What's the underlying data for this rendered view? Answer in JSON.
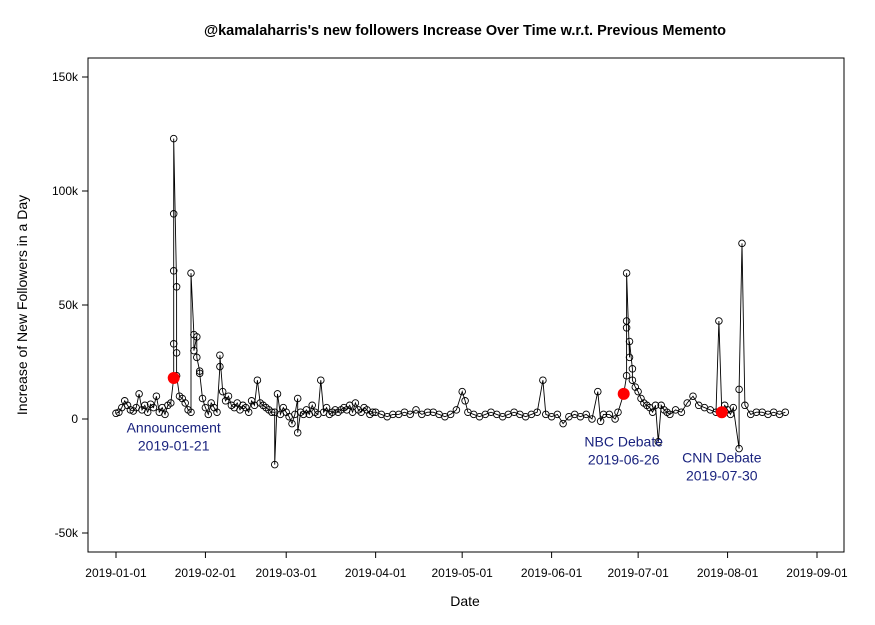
{
  "chart_data": {
    "type": "scatter",
    "title": "@kamalaharris's new followers Increase Over Time w.r.t. Previous Memento",
    "xlabel": "Date",
    "ylabel": "Increase of New Followers in a Day",
    "xlim": [
      "2019-01-01",
      "2019-09-01"
    ],
    "ylim": [
      -50000,
      150000
    ],
    "x_ticks": [
      "2019-01-01",
      "2019-02-01",
      "2019-03-01",
      "2019-04-01",
      "2019-05-01",
      "2019-06-01",
      "2019-07-01",
      "2019-08-01",
      "2019-09-01"
    ],
    "y_ticks": [
      {
        "value": -50000,
        "label": "-50k"
      },
      {
        "value": 0,
        "label": "0"
      },
      {
        "value": 50000,
        "label": "50k"
      },
      {
        "value": 100000,
        "label": "100k"
      },
      {
        "value": 150000,
        "label": "150k"
      }
    ],
    "grid": false,
    "marker_style": "open-circle-with-line",
    "colors": {
      "series": "#000000",
      "highlight": "#ff0000",
      "annotation": "#1a237e"
    },
    "series": [
      {
        "points": [
          [
            "2019-01-01",
            2500
          ],
          [
            "2019-01-02",
            3000
          ],
          [
            "2019-01-03",
            5000
          ],
          [
            "2019-01-04",
            8000
          ],
          [
            "2019-01-05",
            6000
          ],
          [
            "2019-01-06",
            4000
          ],
          [
            "2019-01-07",
            3500
          ],
          [
            "2019-01-08",
            5000
          ],
          [
            "2019-01-09",
            11000
          ],
          [
            "2019-01-10",
            4000
          ],
          [
            "2019-01-11",
            6000
          ],
          [
            "2019-01-12",
            3000
          ],
          [
            "2019-01-13",
            6500
          ],
          [
            "2019-01-14",
            5000
          ],
          [
            "2019-01-15",
            10000
          ],
          [
            "2019-01-16",
            3000
          ],
          [
            "2019-01-17",
            5000
          ],
          [
            "2019-01-18",
            2000
          ],
          [
            "2019-01-19",
            6000
          ],
          [
            "2019-01-20",
            7000
          ],
          [
            "2019-01-21",
            18000
          ],
          [
            "2019-01-21",
            33000
          ],
          [
            "2019-01-21",
            65000
          ],
          [
            "2019-01-21",
            90000
          ],
          [
            "2019-01-21",
            123000
          ],
          [
            "2019-01-22",
            58000
          ],
          [
            "2019-01-22",
            29000
          ],
          [
            "2019-01-22",
            19000
          ],
          [
            "2019-01-23",
            10000
          ],
          [
            "2019-01-24",
            9000
          ],
          [
            "2019-01-25",
            7000
          ],
          [
            "2019-01-26",
            4000
          ],
          [
            "2019-01-27",
            3000
          ],
          [
            "2019-01-27",
            64000
          ],
          [
            "2019-01-28",
            37000
          ],
          [
            "2019-01-28",
            30000
          ],
          [
            "2019-01-29",
            36000
          ],
          [
            "2019-01-29",
            27000
          ],
          [
            "2019-01-30",
            21000
          ],
          [
            "2019-01-30",
            20000
          ],
          [
            "2019-01-31",
            9000
          ],
          [
            "2019-02-01",
            5000
          ],
          [
            "2019-02-02",
            2000
          ],
          [
            "2019-02-03",
            7000
          ],
          [
            "2019-02-04",
            5000
          ],
          [
            "2019-02-05",
            3000
          ],
          [
            "2019-02-06",
            23000
          ],
          [
            "2019-02-06",
            28000
          ],
          [
            "2019-02-07",
            12000
          ],
          [
            "2019-02-08",
            8000
          ],
          [
            "2019-02-09",
            10000
          ],
          [
            "2019-02-10",
            6000
          ],
          [
            "2019-02-11",
            5000
          ],
          [
            "2019-02-12",
            7000
          ],
          [
            "2019-02-13",
            4000
          ],
          [
            "2019-02-14",
            6000
          ],
          [
            "2019-02-15",
            5000
          ],
          [
            "2019-02-16",
            3000
          ],
          [
            "2019-02-17",
            8000
          ],
          [
            "2019-02-18",
            6000
          ],
          [
            "2019-02-19",
            17000
          ],
          [
            "2019-02-20",
            7000
          ],
          [
            "2019-02-21",
            6000
          ],
          [
            "2019-02-22",
            5000
          ],
          [
            "2019-02-23",
            4000
          ],
          [
            "2019-02-24",
            3000
          ],
          [
            "2019-02-25",
            3000
          ],
          [
            "2019-02-25",
            -20000
          ],
          [
            "2019-02-26",
            11000
          ],
          [
            "2019-02-27",
            2000
          ],
          [
            "2019-02-28",
            5000
          ],
          [
            "2019-03-01",
            3000
          ],
          [
            "2019-03-02",
            1000
          ],
          [
            "2019-03-03",
            -2000
          ],
          [
            "2019-03-04",
            2000
          ],
          [
            "2019-03-05",
            9000
          ],
          [
            "2019-03-05",
            -6000
          ],
          [
            "2019-03-06",
            3000
          ],
          [
            "2019-03-07",
            2000
          ],
          [
            "2019-03-08",
            4000
          ],
          [
            "2019-03-09",
            2000
          ],
          [
            "2019-03-10",
            6000
          ],
          [
            "2019-03-11",
            3000
          ],
          [
            "2019-03-12",
            2000
          ],
          [
            "2019-03-13",
            17000
          ],
          [
            "2019-03-14",
            3000
          ],
          [
            "2019-03-15",
            5000
          ],
          [
            "2019-03-16",
            2000
          ],
          [
            "2019-03-17",
            3000
          ],
          [
            "2019-03-18",
            4000
          ],
          [
            "2019-03-19",
            3000
          ],
          [
            "2019-03-20",
            4000
          ],
          [
            "2019-03-21",
            5000
          ],
          [
            "2019-03-22",
            4000
          ],
          [
            "2019-03-23",
            6000
          ],
          [
            "2019-03-24",
            3000
          ],
          [
            "2019-03-25",
            7000
          ],
          [
            "2019-03-26",
            4000
          ],
          [
            "2019-03-27",
            3000
          ],
          [
            "2019-03-28",
            5000
          ],
          [
            "2019-03-29",
            4000
          ],
          [
            "2019-03-30",
            2000
          ],
          [
            "2019-03-31",
            3000
          ],
          [
            "2019-04-01",
            3000
          ],
          [
            "2019-04-03",
            2000
          ],
          [
            "2019-04-05",
            1000
          ],
          [
            "2019-04-07",
            2000
          ],
          [
            "2019-04-09",
            2000
          ],
          [
            "2019-04-11",
            3000
          ],
          [
            "2019-04-13",
            2000
          ],
          [
            "2019-04-15",
            4000
          ],
          [
            "2019-04-17",
            2000
          ],
          [
            "2019-04-19",
            3000
          ],
          [
            "2019-04-21",
            3000
          ],
          [
            "2019-04-23",
            2000
          ],
          [
            "2019-04-25",
            1000
          ],
          [
            "2019-04-27",
            2000
          ],
          [
            "2019-04-29",
            4000
          ],
          [
            "2019-05-01",
            12000
          ],
          [
            "2019-05-02",
            8000
          ],
          [
            "2019-05-03",
            3000
          ],
          [
            "2019-05-05",
            2000
          ],
          [
            "2019-05-07",
            1000
          ],
          [
            "2019-05-09",
            2000
          ],
          [
            "2019-05-11",
            3000
          ],
          [
            "2019-05-13",
            2000
          ],
          [
            "2019-05-15",
            1000
          ],
          [
            "2019-05-17",
            2000
          ],
          [
            "2019-05-19",
            3000
          ],
          [
            "2019-05-21",
            2000
          ],
          [
            "2019-05-23",
            1000
          ],
          [
            "2019-05-25",
            2000
          ],
          [
            "2019-05-27",
            3000
          ],
          [
            "2019-05-29",
            17000
          ],
          [
            "2019-05-30",
            2000
          ],
          [
            "2019-06-01",
            1000
          ],
          [
            "2019-06-03",
            2000
          ],
          [
            "2019-06-05",
            -2000
          ],
          [
            "2019-06-07",
            1000
          ],
          [
            "2019-06-09",
            2000
          ],
          [
            "2019-06-11",
            1000
          ],
          [
            "2019-06-13",
            2000
          ],
          [
            "2019-06-15",
            0
          ],
          [
            "2019-06-17",
            12000
          ],
          [
            "2019-06-18",
            -1000
          ],
          [
            "2019-06-19",
            2000
          ],
          [
            "2019-06-21",
            2000
          ],
          [
            "2019-06-23",
            0
          ],
          [
            "2019-06-24",
            3000
          ],
          [
            "2019-06-26",
            11000
          ],
          [
            "2019-06-27",
            19000
          ],
          [
            "2019-06-27",
            40000
          ],
          [
            "2019-06-27",
            43000
          ],
          [
            "2019-06-27",
            64000
          ],
          [
            "2019-06-28",
            27000
          ],
          [
            "2019-06-28",
            34000
          ],
          [
            "2019-06-29",
            22000
          ],
          [
            "2019-06-29",
            17000
          ],
          [
            "2019-06-30",
            14000
          ],
          [
            "2019-07-01",
            12000
          ],
          [
            "2019-07-02",
            9000
          ],
          [
            "2019-07-03",
            7000
          ],
          [
            "2019-07-04",
            6000
          ],
          [
            "2019-07-05",
            5000
          ],
          [
            "2019-07-06",
            3000
          ],
          [
            "2019-07-07",
            6000
          ],
          [
            "2019-07-08",
            -10000
          ],
          [
            "2019-07-09",
            6000
          ],
          [
            "2019-07-10",
            4000
          ],
          [
            "2019-07-11",
            3000
          ],
          [
            "2019-07-12",
            2000
          ],
          [
            "2019-07-14",
            4000
          ],
          [
            "2019-07-16",
            3000
          ],
          [
            "2019-07-18",
            7000
          ],
          [
            "2019-07-20",
            10000
          ],
          [
            "2019-07-22",
            6000
          ],
          [
            "2019-07-24",
            5000
          ],
          [
            "2019-07-26",
            4000
          ],
          [
            "2019-07-28",
            3000
          ],
          [
            "2019-07-29",
            43000
          ],
          [
            "2019-07-30",
            3000
          ],
          [
            "2019-07-31",
            6000
          ],
          [
            "2019-08-01",
            4000
          ],
          [
            "2019-08-02",
            2000
          ],
          [
            "2019-08-03",
            5000
          ],
          [
            "2019-08-05",
            -13000
          ],
          [
            "2019-08-05",
            13000
          ],
          [
            "2019-08-06",
            77000
          ],
          [
            "2019-08-07",
            6000
          ],
          [
            "2019-08-09",
            2000
          ],
          [
            "2019-08-11",
            3000
          ],
          [
            "2019-08-13",
            3000
          ],
          [
            "2019-08-15",
            2000
          ],
          [
            "2019-08-17",
            3000
          ],
          [
            "2019-08-19",
            2000
          ],
          [
            "2019-08-21",
            3000
          ]
        ]
      }
    ],
    "highlighted_points": [
      [
        "2019-01-21",
        18000
      ],
      [
        "2019-06-26",
        11000
      ],
      [
        "2019-07-30",
        3000
      ]
    ],
    "annotations": [
      {
        "lines": [
          "Announcement",
          "2019-01-21"
        ],
        "at": [
          "2019-01-21",
          -6000
        ]
      },
      {
        "lines": [
          "NBC Debate",
          "2019-06-26"
        ],
        "at": [
          "2019-06-26",
          -12000
        ]
      },
      {
        "lines": [
          "CNN Debate",
          "2019-07-30"
        ],
        "at": [
          "2019-07-30",
          -19000
        ]
      }
    ]
  }
}
